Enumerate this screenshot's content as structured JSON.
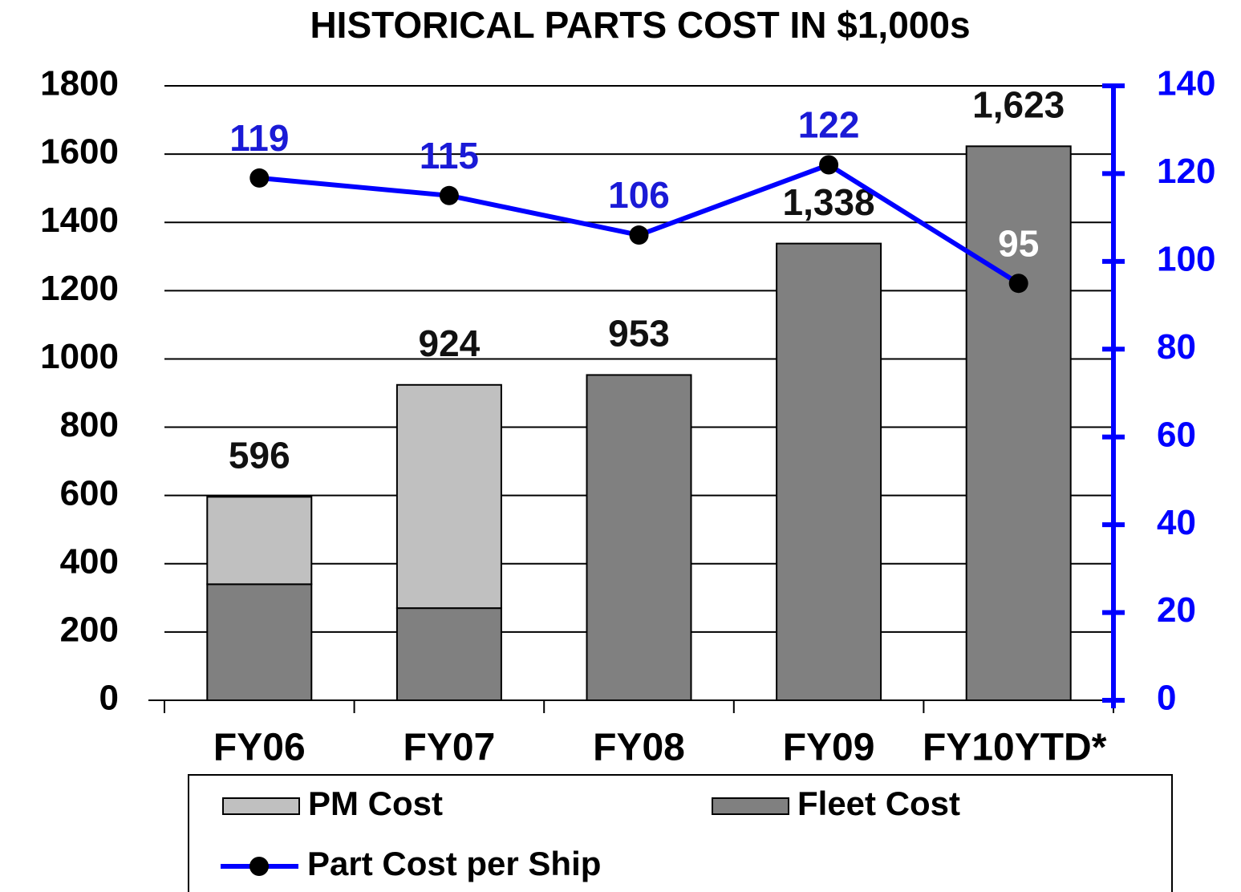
{
  "chart_data": {
    "type": "bar",
    "stacked": true,
    "title": "HISTORICAL PARTS COST IN $1,000s",
    "categories": [
      "FY06",
      "FY07",
      "FY08",
      "FY09",
      "FY10YTD*"
    ],
    "series": [
      {
        "name": "Fleet Cost",
        "color": "#808080",
        "values": [
          340,
          270,
          953,
          1338,
          1623
        ]
      },
      {
        "name": "PM Cost",
        "color": "#c0c0c0",
        "values": [
          256,
          654,
          0,
          0,
          0
        ]
      },
      {
        "name": "Part Cost per Ship",
        "type": "line",
        "axis": "y2",
        "color": "#0000ff",
        "marker_color": "#000000",
        "values": [
          119,
          115,
          106,
          122,
          95
        ],
        "value_label_colors": [
          "#1a1ad6",
          "#1a1ad6",
          "#1a1ad6",
          "#1a1ad6",
          "#ffffff"
        ]
      }
    ],
    "totals": [
      596,
      924,
      953,
      1338,
      1623
    ],
    "total_labels": [
      "596",
      "924",
      "953",
      "1,338",
      "1,623"
    ],
    "ylim": [
      0,
      1800
    ],
    "yticks": [
      0,
      200,
      400,
      600,
      800,
      1000,
      1200,
      1400,
      1600,
      1800
    ],
    "y2lim": [
      0,
      140
    ],
    "y2ticks": [
      0,
      20,
      40,
      60,
      80,
      100,
      120,
      140
    ],
    "y2_color": "#0000ff",
    "grid": true,
    "legend": "bottom"
  }
}
